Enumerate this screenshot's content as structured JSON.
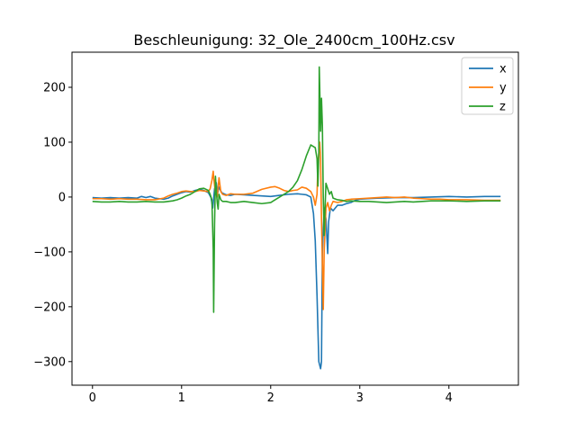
{
  "chart_data": {
    "type": "line",
    "title": "Beschleunigung: 32_Ole_2400cm_100Hz.csv",
    "xlabel": "",
    "ylabel": "",
    "xlim": [
      -0.23,
      4.78
    ],
    "ylim": [
      -343,
      264
    ],
    "xticks": [
      0,
      1,
      2,
      3,
      4
    ],
    "yticks": [
      -300,
      -200,
      -100,
      0,
      100,
      200
    ],
    "xtick_labels": [
      "0",
      "1",
      "2",
      "3",
      "4"
    ],
    "ytick_labels": [
      "−300",
      "−200",
      "−100",
      "0",
      "100",
      "200"
    ],
    "legend": {
      "position": "top-right"
    },
    "grid": false,
    "series": [
      {
        "name": "x",
        "color": "#1f77b4",
        "points": [
          [
            0,
            -1
          ],
          [
            0.1,
            -2
          ],
          [
            0.2,
            -1
          ],
          [
            0.3,
            -2
          ],
          [
            0.4,
            -1
          ],
          [
            0.5,
            -2
          ],
          [
            0.55,
            1
          ],
          [
            0.6,
            -1
          ],
          [
            0.65,
            1
          ],
          [
            0.7,
            -2
          ],
          [
            0.75,
            -3
          ],
          [
            0.8,
            -4
          ],
          [
            0.85,
            -2
          ],
          [
            0.9,
            2
          ],
          [
            0.95,
            5
          ],
          [
            1.0,
            8
          ],
          [
            1.05,
            10
          ],
          [
            1.1,
            9
          ],
          [
            1.15,
            12
          ],
          [
            1.2,
            14
          ],
          [
            1.25,
            12
          ],
          [
            1.3,
            8
          ],
          [
            1.33,
            -1
          ],
          [
            1.35,
            -20
          ],
          [
            1.37,
            15
          ],
          [
            1.39,
            26
          ],
          [
            1.4,
            4
          ],
          [
            1.42,
            18
          ],
          [
            1.45,
            8
          ],
          [
            1.5,
            4
          ],
          [
            1.55,
            3
          ],
          [
            1.6,
            5
          ],
          [
            1.7,
            4
          ],
          [
            1.8,
            3
          ],
          [
            1.9,
            2
          ],
          [
            2.0,
            1
          ],
          [
            2.1,
            3
          ],
          [
            2.2,
            5
          ],
          [
            2.3,
            6
          ],
          [
            2.35,
            5
          ],
          [
            2.4,
            4
          ],
          [
            2.45,
            0
          ],
          [
            2.48,
            -30
          ],
          [
            2.5,
            -80
          ],
          [
            2.52,
            -180
          ],
          [
            2.54,
            -300
          ],
          [
            2.56,
            -313
          ],
          [
            2.57,
            -300
          ],
          [
            2.58,
            -100
          ],
          [
            2.6,
            -20
          ],
          [
            2.62,
            -40
          ],
          [
            2.64,
            -103
          ],
          [
            2.65,
            -45
          ],
          [
            2.67,
            -20
          ],
          [
            2.7,
            -25
          ],
          [
            2.75,
            -15
          ],
          [
            2.8,
            -15
          ],
          [
            2.85,
            -12
          ],
          [
            2.9,
            -10
          ],
          [
            2.95,
            -6
          ],
          [
            3.0,
            -4
          ],
          [
            3.1,
            -3
          ],
          [
            3.2,
            -2
          ],
          [
            3.4,
            -1
          ],
          [
            3.6,
            -1
          ],
          [
            3.8,
            0
          ],
          [
            4.0,
            1
          ],
          [
            4.2,
            0
          ],
          [
            4.4,
            1
          ],
          [
            4.58,
            1
          ]
        ]
      },
      {
        "name": "y",
        "color": "#ff7f0e",
        "points": [
          [
            0,
            -3
          ],
          [
            0.1,
            -3
          ],
          [
            0.2,
            -4
          ],
          [
            0.3,
            -3
          ],
          [
            0.4,
            -4
          ],
          [
            0.5,
            -4
          ],
          [
            0.6,
            -5
          ],
          [
            0.7,
            -5
          ],
          [
            0.8,
            -2
          ],
          [
            0.85,
            2
          ],
          [
            0.9,
            5
          ],
          [
            0.95,
            7
          ],
          [
            1.0,
            10
          ],
          [
            1.05,
            11
          ],
          [
            1.1,
            10
          ],
          [
            1.15,
            10
          ],
          [
            1.2,
            12
          ],
          [
            1.25,
            11
          ],
          [
            1.3,
            10
          ],
          [
            1.32,
            15
          ],
          [
            1.34,
            30
          ],
          [
            1.355,
            47
          ],
          [
            1.36,
            35
          ],
          [
            1.38,
            8
          ],
          [
            1.4,
            0
          ],
          [
            1.42,
            35
          ],
          [
            1.44,
            10
          ],
          [
            1.46,
            5
          ],
          [
            1.5,
            3
          ],
          [
            1.55,
            6
          ],
          [
            1.6,
            5
          ],
          [
            1.7,
            5
          ],
          [
            1.8,
            7
          ],
          [
            1.9,
            14
          ],
          [
            2.0,
            18
          ],
          [
            2.05,
            19
          ],
          [
            2.1,
            16
          ],
          [
            2.15,
            12
          ],
          [
            2.2,
            10
          ],
          [
            2.25,
            12
          ],
          [
            2.3,
            13
          ],
          [
            2.35,
            18
          ],
          [
            2.4,
            16
          ],
          [
            2.45,
            10
          ],
          [
            2.48,
            0
          ],
          [
            2.5,
            -15
          ],
          [
            2.52,
            5
          ],
          [
            2.53,
            60
          ],
          [
            2.54,
            80
          ],
          [
            2.55,
            100
          ],
          [
            2.56,
            70
          ],
          [
            2.57,
            -40
          ],
          [
            2.58,
            -120
          ],
          [
            2.59,
            -205
          ],
          [
            2.6,
            -100
          ],
          [
            2.62,
            -20
          ],
          [
            2.64,
            -10
          ],
          [
            2.66,
            -25
          ],
          [
            2.68,
            -15
          ],
          [
            2.7,
            -8
          ],
          [
            2.75,
            -10
          ],
          [
            2.8,
            -8
          ],
          [
            2.85,
            -5
          ],
          [
            2.9,
            -4
          ],
          [
            3.0,
            -3
          ],
          [
            3.1,
            -2
          ],
          [
            3.2,
            -1
          ],
          [
            3.3,
            0
          ],
          [
            3.4,
            -1
          ],
          [
            3.5,
            0
          ],
          [
            3.6,
            -2
          ],
          [
            3.7,
            -3
          ],
          [
            3.8,
            -4
          ],
          [
            3.9,
            -4
          ],
          [
            4.0,
            -5
          ],
          [
            4.2,
            -5
          ],
          [
            4.4,
            -6
          ],
          [
            4.58,
            -6
          ]
        ]
      },
      {
        "name": "z",
        "color": "#2ca02c",
        "points": [
          [
            0,
            -8
          ],
          [
            0.1,
            -9
          ],
          [
            0.2,
            -9
          ],
          [
            0.3,
            -8
          ],
          [
            0.4,
            -9
          ],
          [
            0.5,
            -9
          ],
          [
            0.6,
            -8
          ],
          [
            0.7,
            -9
          ],
          [
            0.8,
            -9
          ],
          [
            0.85,
            -8
          ],
          [
            0.9,
            -7
          ],
          [
            0.95,
            -5
          ],
          [
            1.0,
            -2
          ],
          [
            1.05,
            2
          ],
          [
            1.1,
            5
          ],
          [
            1.15,
            10
          ],
          [
            1.2,
            15
          ],
          [
            1.25,
            16
          ],
          [
            1.3,
            12
          ],
          [
            1.32,
            5
          ],
          [
            1.34,
            -5
          ],
          [
            1.355,
            -95
          ],
          [
            1.36,
            -210
          ],
          [
            1.37,
            -50
          ],
          [
            1.38,
            38
          ],
          [
            1.39,
            10
          ],
          [
            1.4,
            -10
          ],
          [
            1.41,
            -22
          ],
          [
            1.42,
            5
          ],
          [
            1.44,
            -5
          ],
          [
            1.46,
            -8
          ],
          [
            1.5,
            -8
          ],
          [
            1.55,
            -10
          ],
          [
            1.6,
            -10
          ],
          [
            1.7,
            -8
          ],
          [
            1.8,
            -10
          ],
          [
            1.9,
            -12
          ],
          [
            2.0,
            -10
          ],
          [
            2.05,
            -5
          ],
          [
            2.1,
            0
          ],
          [
            2.15,
            5
          ],
          [
            2.2,
            10
          ],
          [
            2.25,
            18
          ],
          [
            2.3,
            30
          ],
          [
            2.35,
            50
          ],
          [
            2.4,
            75
          ],
          [
            2.45,
            95
          ],
          [
            2.5,
            90
          ],
          [
            2.52,
            70
          ],
          [
            2.53,
            20
          ],
          [
            2.54,
            80
          ],
          [
            2.545,
            237
          ],
          [
            2.55,
            200
          ],
          [
            2.56,
            120
          ],
          [
            2.57,
            180
          ],
          [
            2.58,
            130
          ],
          [
            2.59,
            0
          ],
          [
            2.6,
            -70
          ],
          [
            2.61,
            -20
          ],
          [
            2.62,
            25
          ],
          [
            2.64,
            15
          ],
          [
            2.66,
            5
          ],
          [
            2.68,
            10
          ],
          [
            2.7,
            -2
          ],
          [
            2.75,
            -5
          ],
          [
            2.8,
            -6
          ],
          [
            2.85,
            -8
          ],
          [
            2.9,
            -7
          ],
          [
            3.0,
            -8
          ],
          [
            3.1,
            -8
          ],
          [
            3.2,
            -9
          ],
          [
            3.3,
            -10
          ],
          [
            3.4,
            -9
          ],
          [
            3.5,
            -8
          ],
          [
            3.6,
            -9
          ],
          [
            3.7,
            -8
          ],
          [
            3.8,
            -7
          ],
          [
            4.0,
            -7
          ],
          [
            4.2,
            -8
          ],
          [
            4.4,
            -7
          ],
          [
            4.58,
            -7
          ]
        ]
      }
    ]
  }
}
